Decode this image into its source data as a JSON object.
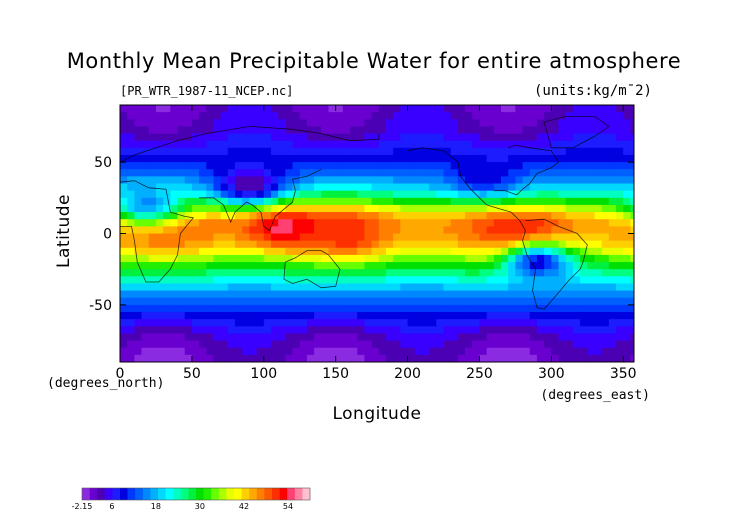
{
  "chart_data": {
    "type": "heatmap",
    "title": "Monthly Mean Precipitable Water for entire atmosphere",
    "subtitle": "[PR_WTR_1987-11_NCEP.nc]",
    "units_label": "(units:kg/m¯2)",
    "xlabel": "Longitude",
    "ylabel": "Latitude",
    "x_units": "(degrees_east)",
    "y_units": "(degrees_north)",
    "xlim": [
      0,
      357.5
    ],
    "ylim": [
      -90,
      90
    ],
    "x_ticks": [
      0,
      50,
      100,
      150,
      200,
      250,
      300,
      350
    ],
    "y_ticks": [
      50,
      0,
      -50
    ],
    "colorbar": {
      "min": -2.15,
      "max": 60,
      "tick_values": [
        -2.15,
        6,
        18,
        30,
        42,
        54
      ],
      "tick_labels": [
        "-2.15",
        "6",
        "18",
        "30",
        "42",
        "54"
      ],
      "colors": [
        "#8a2be2",
        "#6a00d0",
        "#4b00b4",
        "#3a00ff",
        "#1c1cff",
        "#0000e0",
        "#0038ff",
        "#0060ff",
        "#0088ff",
        "#00b0ff",
        "#00d8ff",
        "#00ffff",
        "#00ffc0",
        "#00ff80",
        "#00f040",
        "#00e000",
        "#22ee00",
        "#66ff00",
        "#aaff00",
        "#e8ff00",
        "#ffff00",
        "#ffd000",
        "#ffa800",
        "#ff8000",
        "#ff5800",
        "#ff3000",
        "#ff0000",
        "#ff4070",
        "#ff80a0",
        "#ffc0d0"
      ]
    },
    "zonal_profile": {
      "lat": [
        -90,
        -80,
        -70,
        -60,
        -50,
        -40,
        -30,
        -20,
        -10,
        0,
        10,
        20,
        30,
        40,
        50,
        60,
        70,
        80,
        90
      ],
      "value": [
        1,
        2,
        4,
        8,
        12,
        17,
        25,
        33,
        43,
        47,
        47,
        35,
        22,
        15,
        10,
        7,
        4,
        3,
        2
      ]
    },
    "features": [
      {
        "lon": 110,
        "lat": 5,
        "value": 56
      },
      {
        "lon": 285,
        "lat": -5,
        "value": 54
      },
      {
        "lon": 160,
        "lat": 0,
        "value": 49
      },
      {
        "lon": 290,
        "lat": -20,
        "value": 8
      },
      {
        "lon": 90,
        "lat": 35,
        "value": 3
      },
      {
        "lon": 255,
        "lat": 40,
        "value": 8
      },
      {
        "lon": 20,
        "lat": 20,
        "value": 14
      }
    ]
  }
}
